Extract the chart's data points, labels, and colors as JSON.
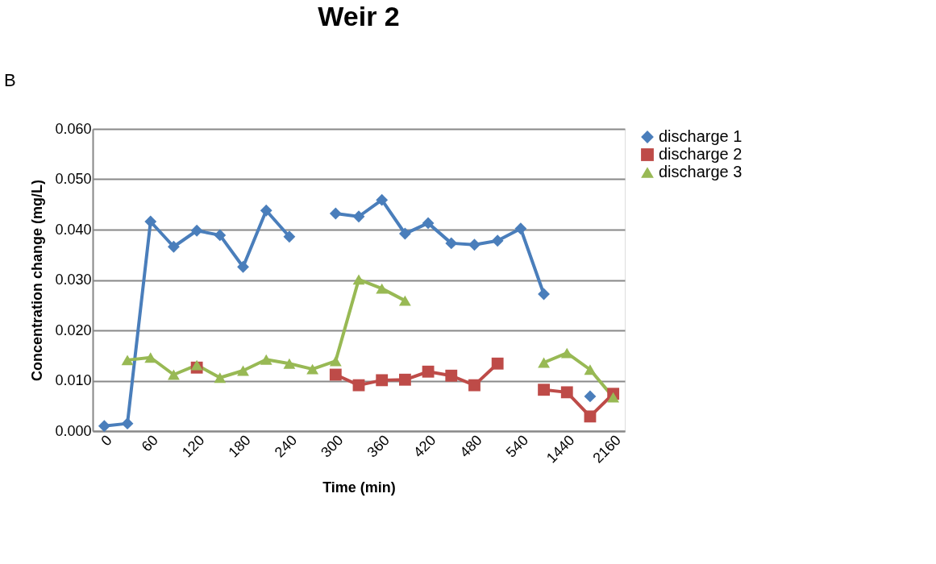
{
  "chart_data": {
    "type": "line",
    "title": "Weir 2",
    "xlabel": "Time (min)",
    "ylabel": "Concentration change  (mg/L)",
    "annotations": [
      "B"
    ],
    "categories": [
      "0",
      null,
      "60",
      null,
      "120",
      null,
      "180",
      null,
      "240",
      null,
      "300",
      null,
      "360",
      null,
      "420",
      null,
      "480",
      null,
      "540",
      null,
      "1440",
      null,
      "2160"
    ],
    "series": [
      {
        "name": "discharge 1",
        "color": "#4a7ebb",
        "marker": "diamond",
        "values": [
          0.001,
          0.0015,
          0.0416,
          0.0366,
          0.0398,
          0.0389,
          0.0326,
          0.0438,
          0.0386,
          null,
          0.0432,
          0.0426,
          0.0459,
          0.0392,
          0.0413,
          0.0373,
          0.037,
          0.0378,
          0.0402,
          0.0272,
          null,
          0.0069,
          null
        ]
      },
      {
        "name": "discharge 2",
        "color": "#be4b48",
        "marker": "square",
        "values": [
          null,
          null,
          null,
          null,
          0.0126,
          null,
          null,
          null,
          null,
          null,
          0.0112,
          0.0091,
          0.0101,
          0.0102,
          0.0118,
          0.011,
          0.0091,
          0.0134,
          null,
          0.0082,
          0.0077,
          0.0029,
          0.0074
        ]
      },
      {
        "name": "discharge 3",
        "color": "#98b954",
        "marker": "triangle",
        "values": [
          null,
          0.0141,
          0.0146,
          0.0112,
          0.0131,
          0.0106,
          0.012,
          0.0142,
          0.0134,
          0.0123,
          0.0139,
          0.0301,
          0.0283,
          0.0259,
          null,
          null,
          null,
          null,
          null,
          0.0136,
          0.0155,
          0.0122,
          0.0067
        ]
      }
    ],
    "ylim": [
      0,
      0.06
    ],
    "yticks": [
      {
        "value": 0,
        "label": "0.000"
      },
      {
        "value": 0.01,
        "label": "0.010"
      },
      {
        "value": 0.02,
        "label": "0.020"
      },
      {
        "value": 0.03,
        "label": "0.030"
      },
      {
        "value": 0.04,
        "label": "0.040"
      },
      {
        "value": 0.05,
        "label": "0.050"
      },
      {
        "value": 0.06,
        "label": "0.060"
      }
    ],
    "grid": "y",
    "legend": "right",
    "line_style": "solid"
  }
}
